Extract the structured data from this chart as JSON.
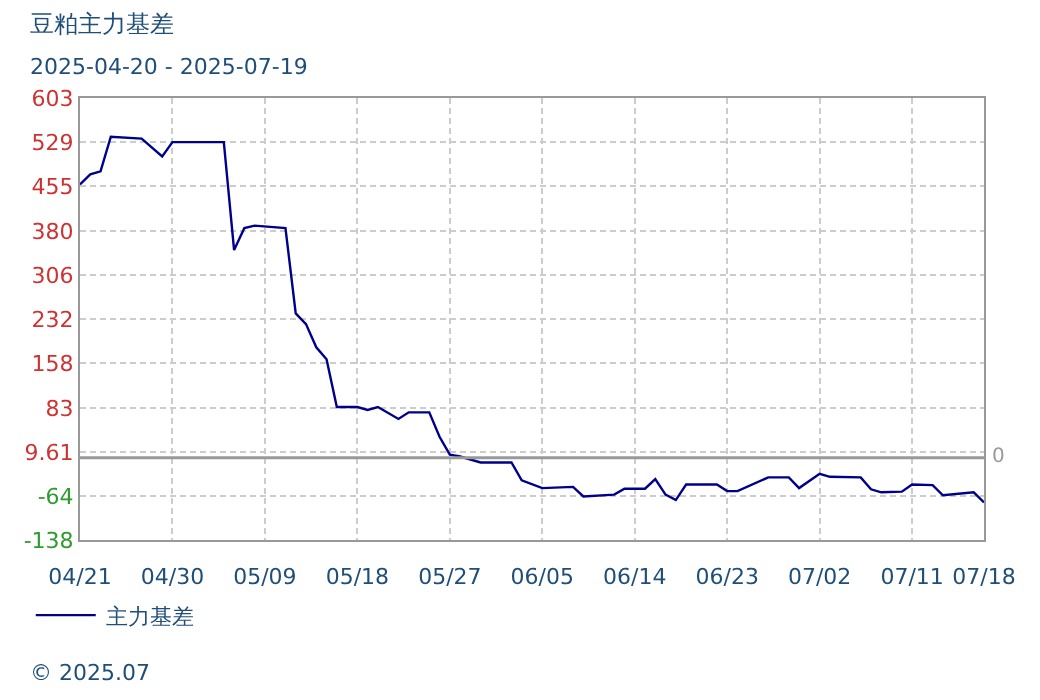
{
  "chart_data": {
    "type": "line",
    "title": "豆粕主力基差",
    "subtitle": "2025-04-20 - 2025-07-19",
    "x": [
      "2025-04-21",
      "2025-04-22",
      "2025-04-23",
      "2025-04-24",
      "2025-04-27",
      "2025-04-29",
      "2025-04-30",
      "2025-05-05",
      "2025-05-06",
      "2025-05-07",
      "2025-05-08",
      "2025-05-11",
      "2025-05-12",
      "2025-05-13",
      "2025-05-14",
      "2025-05-15",
      "2025-05-16",
      "2025-05-18",
      "2025-05-19",
      "2025-05-20",
      "2025-05-22",
      "2025-05-23",
      "2025-05-25",
      "2025-05-26",
      "2025-05-27",
      "2025-05-28",
      "2025-05-30",
      "2025-06-02",
      "2025-06-03",
      "2025-06-05",
      "2025-06-08",
      "2025-06-09",
      "2025-06-12",
      "2025-06-13",
      "2025-06-15",
      "2025-06-16",
      "2025-06-17",
      "2025-06-18",
      "2025-06-19",
      "2025-06-22",
      "2025-06-23",
      "2025-06-24",
      "2025-06-27",
      "2025-06-29",
      "2025-06-30",
      "2025-07-02",
      "2025-07-03",
      "2025-07-06",
      "2025-07-07",
      "2025-07-08",
      "2025-07-10",
      "2025-07-11",
      "2025-07-13",
      "2025-07-14",
      "2025-07-17",
      "2025-07-18"
    ],
    "series": [
      {
        "name": "主力基差",
        "color": "#00008b",
        "values": [
          458,
          475,
          480,
          538,
          535,
          505,
          529,
          529,
          348,
          385,
          389,
          385,
          242,
          224,
          185,
          165,
          85,
          85,
          80,
          85,
          65,
          76,
          76,
          35,
          5,
          2,
          -8,
          -8,
          -38,
          -51,
          -49,
          -65,
          -62,
          -52,
          -52,
          -36,
          -62,
          -71,
          -45,
          -45,
          -56,
          -56,
          -33,
          -33,
          -51,
          -27,
          -32,
          -33,
          -53,
          -58,
          -57,
          -45,
          -46,
          -63,
          -58,
          -75
        ]
      }
    ],
    "xlim": [
      "2025-04-21",
      "2025-07-18"
    ],
    "xticks": [
      {
        "value": "2025-04-21",
        "label": "04/21"
      },
      {
        "value": "2025-04-30",
        "label": "04/30"
      },
      {
        "value": "2025-05-09",
        "label": "05/09"
      },
      {
        "value": "2025-05-18",
        "label": "05/18"
      },
      {
        "value": "2025-05-27",
        "label": "05/27"
      },
      {
        "value": "2025-06-05",
        "label": "06/05"
      },
      {
        "value": "2025-06-14",
        "label": "06/14"
      },
      {
        "value": "2025-06-23",
        "label": "06/23"
      },
      {
        "value": "2025-07-02",
        "label": "07/02"
      },
      {
        "value": "2025-07-11",
        "label": "07/11"
      },
      {
        "value": "2025-07-18",
        "label": "07/18"
      }
    ],
    "ylim": [
      -138,
      603
    ],
    "yticks": [
      -138,
      -64,
      9.61,
      83,
      158,
      232,
      306,
      380,
      455,
      529,
      603
    ],
    "ref_lines": [
      {
        "axis": "y",
        "value": 0,
        "label": "0",
        "color": "#999999"
      }
    ],
    "grid": true,
    "legend": "bottom",
    "marker": "none",
    "line_style": "solid",
    "annotations": [
      "© 2025.07"
    ]
  }
}
